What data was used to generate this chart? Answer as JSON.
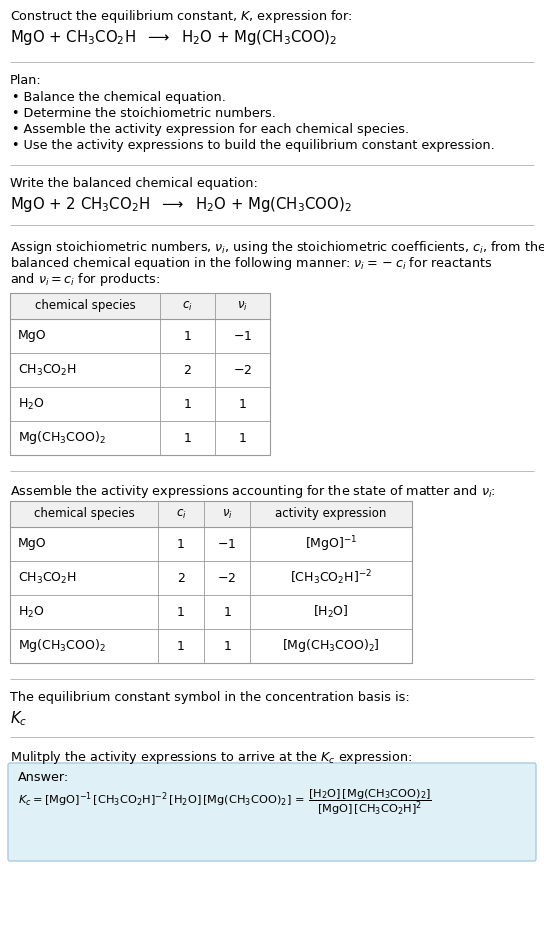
{
  "bg_color": "#ffffff",
  "text_color": "#000000",
  "title_line1": "Construct the equilibrium constant, $K$, expression for:",
  "title_line2": "MgO + CH$_3$CO$_2$H  $\\longrightarrow$  H$_2$O + Mg(CH$_3$COO)$_2$",
  "plan_header": "Plan:",
  "plan_bullets": [
    "• Balance the chemical equation.",
    "• Determine the stoichiometric numbers.",
    "• Assemble the activity expression for each chemical species.",
    "• Use the activity expressions to build the equilibrium constant expression."
  ],
  "balanced_header": "Write the balanced chemical equation:",
  "balanced_eq": "MgO + 2 CH$_3$CO$_2$H  $\\longrightarrow$  H$_2$O + Mg(CH$_3$COO)$_2$",
  "stoich_header_lines": [
    "Assign stoichiometric numbers, $\\nu_i$, using the stoichiometric coefficients, $c_i$, from the",
    "balanced chemical equation in the following manner: $\\nu_i = -c_i$ for reactants",
    "and $\\nu_i = c_i$ for products:"
  ],
  "table1_cols": [
    "chemical species",
    "$c_i$",
    "$\\nu_i$"
  ],
  "table1_rows": [
    [
      "MgO",
      "1",
      "$-1$"
    ],
    [
      "CH$_3$CO$_2$H",
      "2",
      "$-2$"
    ],
    [
      "H$_2$O",
      "1",
      "$1$"
    ],
    [
      "Mg(CH$_3$COO)$_2$",
      "1",
      "$1$"
    ]
  ],
  "activity_header": "Assemble the activity expressions accounting for the state of matter and $\\nu_i$:",
  "table2_cols": [
    "chemical species",
    "$c_i$",
    "$\\nu_i$",
    "activity expression"
  ],
  "table2_rows": [
    [
      "MgO",
      "1",
      "$-1$",
      "[MgO]$^{-1}$"
    ],
    [
      "CH$_3$CO$_2$H",
      "2",
      "$-2$",
      "[CH$_3$CO$_2$H]$^{-2}$"
    ],
    [
      "H$_2$O",
      "1",
      "$1$",
      "[H$_2$O]"
    ],
    [
      "Mg(CH$_3$COO)$_2$",
      "1",
      "$1$",
      "[Mg(CH$_3$COO)$_2$]"
    ]
  ],
  "kc_header": "The equilibrium constant symbol in the concentration basis is:",
  "kc_symbol": "$K_c$",
  "multiply_header": "Mulitply the activity expressions to arrive at the $K_c$ expression:",
  "answer_label": "Answer:",
  "answer_box_color": "#dff0f7",
  "answer_box_border": "#aacce0",
  "table_header_color": "#f0f0f0",
  "separator_color": "#bbbbbb",
  "table_border_color": "#999999"
}
